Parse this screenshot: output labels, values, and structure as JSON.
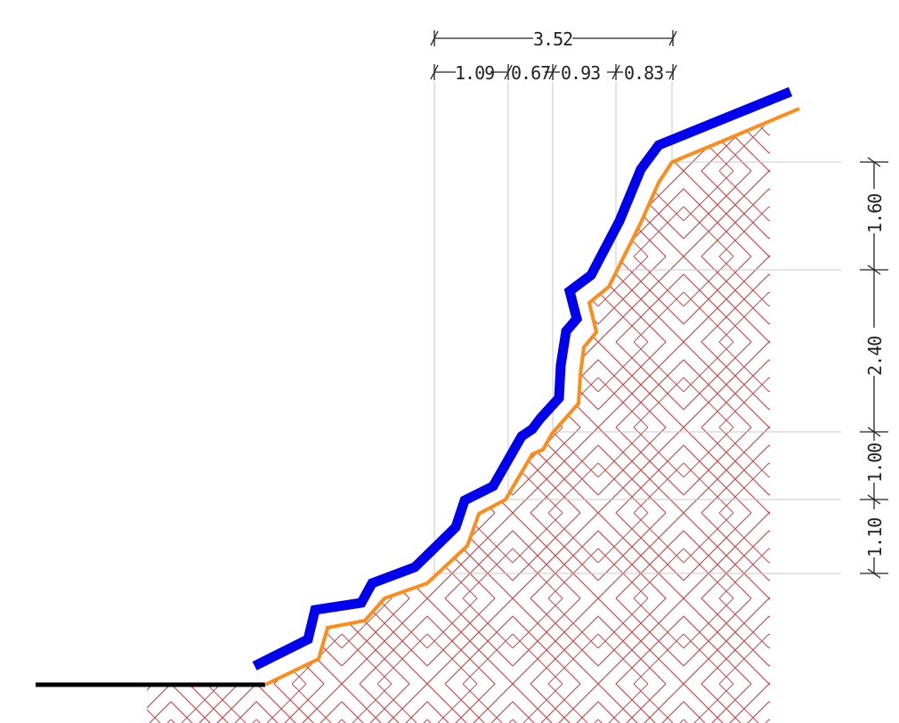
{
  "colors": {
    "background": "#ffffff",
    "profile_primary": "#0000ee",
    "profile_secondary": "#ff8c1a",
    "ground_line": "#000000",
    "hatch": "#c0504d",
    "reference_lines": "#c8c8c8",
    "dimension": "#222222"
  },
  "dimensions": {
    "horizontal_total": {
      "label": "3.52"
    },
    "horizontal_segments": [
      {
        "label": "1.09"
      },
      {
        "label": "0.67"
      },
      {
        "label": "0.93"
      },
      {
        "label": "0.83"
      }
    ],
    "vertical_segments": [
      {
        "label": "1.60"
      },
      {
        "label": "2.40"
      },
      {
        "label": "1.00"
      },
      {
        "label": "1.10"
      }
    ]
  }
}
